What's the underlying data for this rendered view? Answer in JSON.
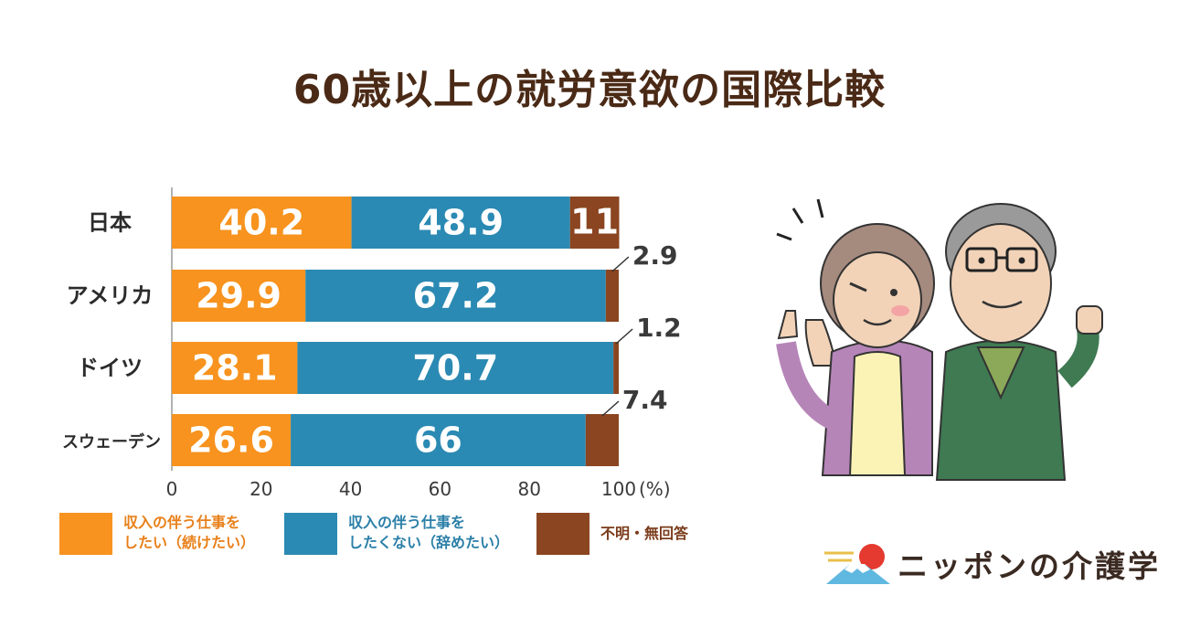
{
  "chart_data": {
    "type": "bar",
    "orientation": "horizontal",
    "stacked": true,
    "title": "60歳以上の就労意欲の国際比較",
    "categories": [
      "日本",
      "アメリカ",
      "ドイツ",
      "スウェーデン"
    ],
    "series": [
      {
        "name": "収入の伴う仕事をしたい（続けたい）",
        "values": [
          40.2,
          29.9,
          28.1,
          26.6
        ],
        "labels": [
          "40.2",
          "29.9",
          "28.1",
          "26.6"
        ],
        "color": "#f7931e"
      },
      {
        "name": "収入の伴う仕事をしたくない（辞めたい）",
        "values": [
          48.9,
          67.2,
          70.7,
          66
        ],
        "labels": [
          "48.9",
          "67.2",
          "70.7",
          "66"
        ],
        "color": "#2b8ab3"
      },
      {
        "name": "不明・無回答",
        "values": [
          11,
          2.9,
          1.2,
          7.4
        ],
        "labels": [
          "11",
          "2.9",
          "1.2",
          "7.4"
        ],
        "color": "#8b4520"
      }
    ],
    "xlim": [
      0,
      100
    ],
    "xticks": [
      "0",
      "20",
      "40",
      "60",
      "80",
      "100"
    ],
    "xunit": "(%)",
    "grid": false,
    "legend_position": "bottom"
  },
  "legend": {
    "items": [
      {
        "text": "収入の伴う仕事を\nしたい（続けたい）",
        "color": "#f7931e",
        "text_color": "#e8801a"
      },
      {
        "text": "収入の伴う仕事を\nしたくない（辞めたい）",
        "color": "#2b8ab3",
        "text_color": "#2b7fa8"
      },
      {
        "text": "不明・無回答",
        "color": "#8b4520",
        "text_color": "#7a3b1a"
      }
    ]
  },
  "logo": {
    "text": "ニッポンの介護学"
  },
  "illustration": {
    "icon": "elderly-couple-illustration"
  }
}
